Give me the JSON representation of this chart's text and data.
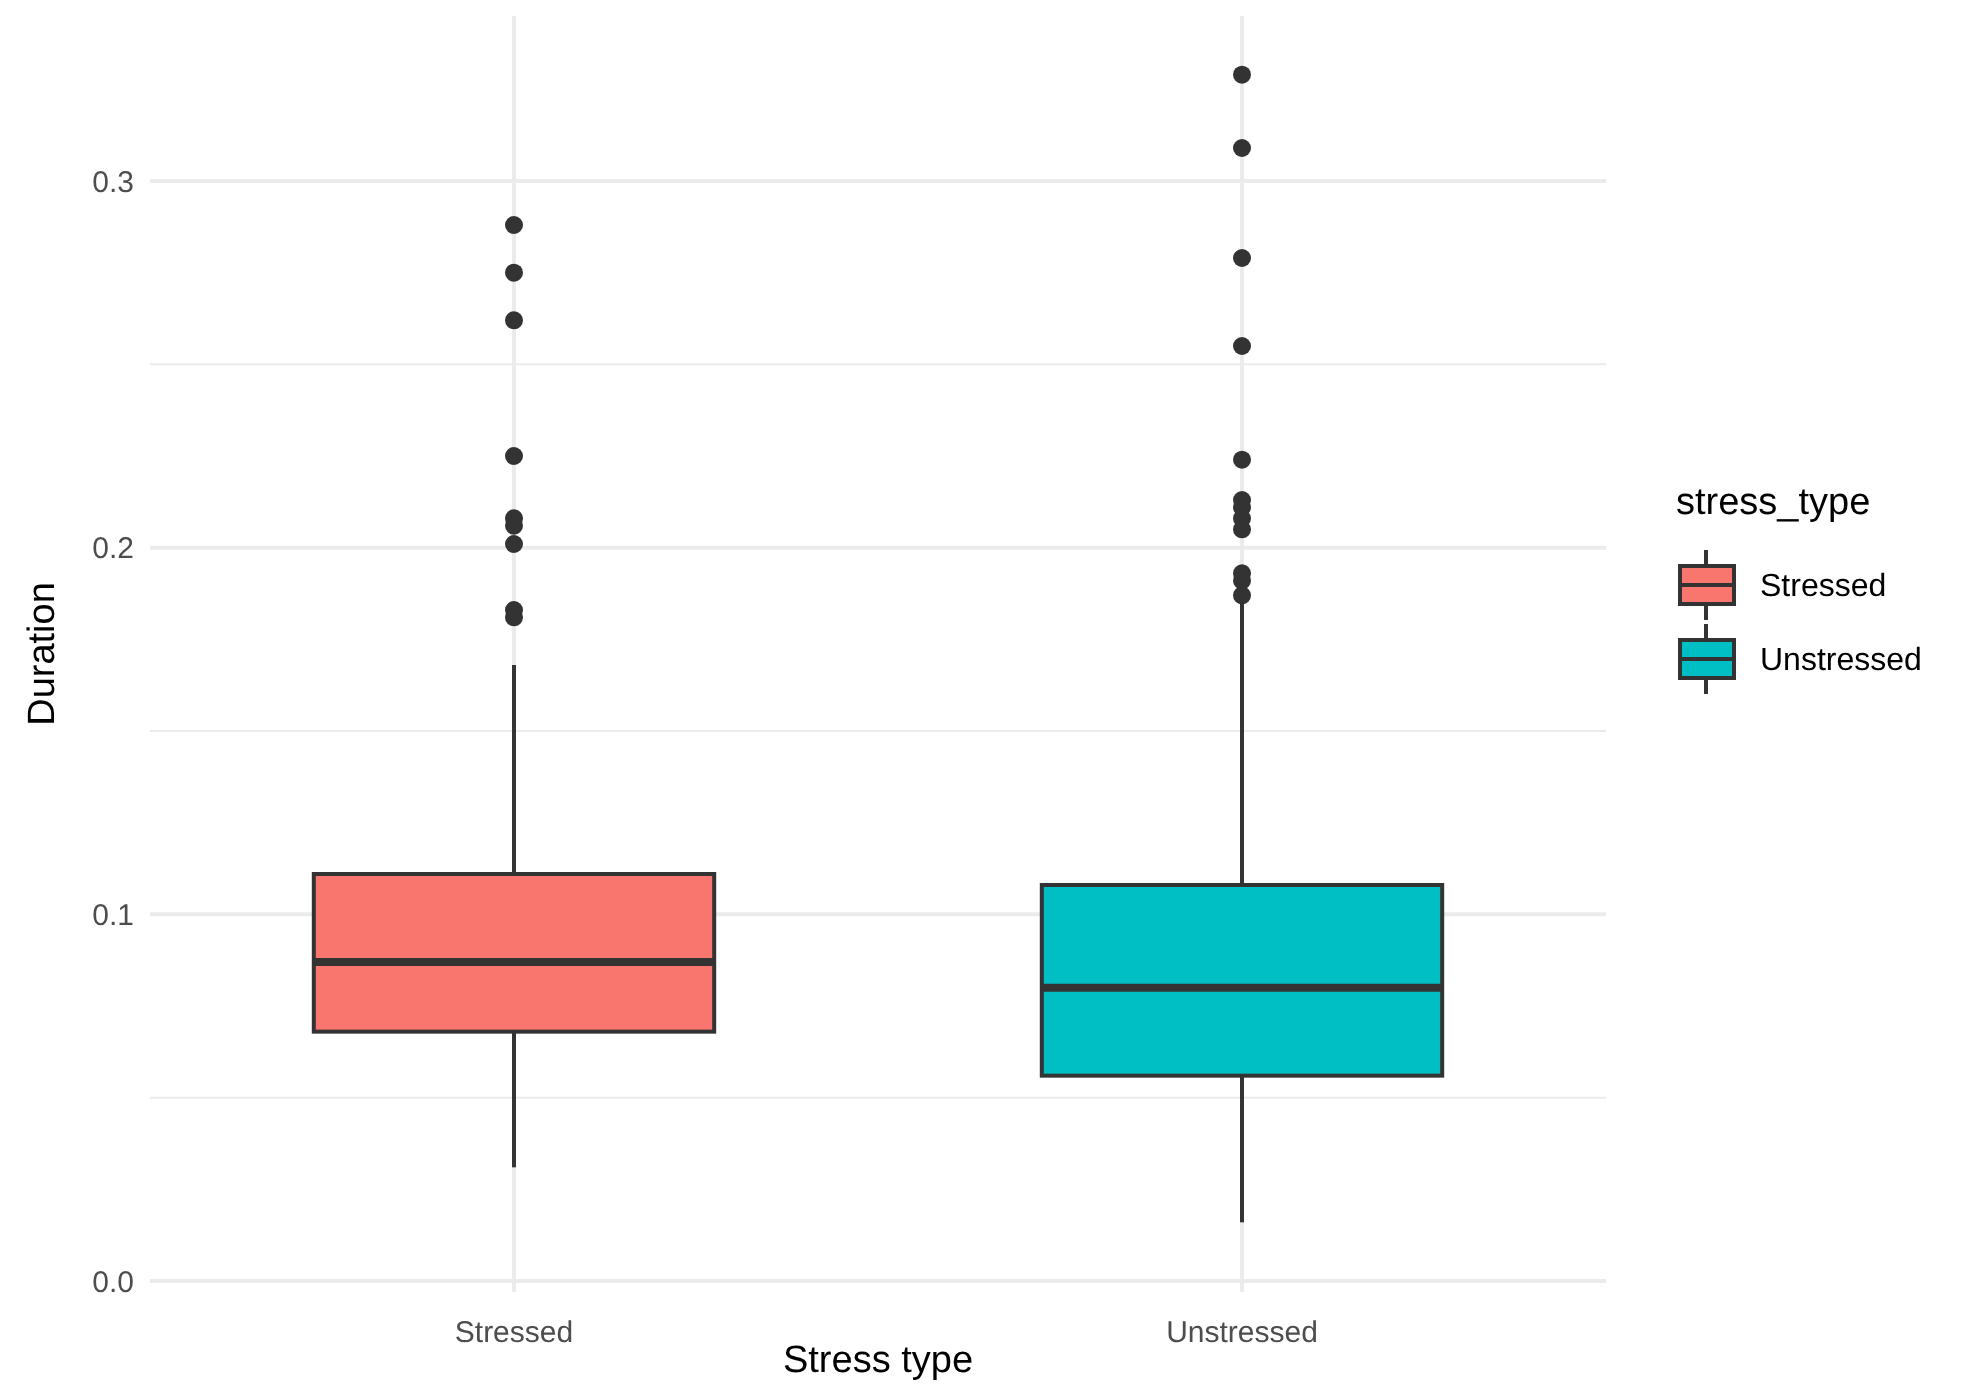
{
  "chart_data": {
    "type": "box",
    "xlabel": "Stress type",
    "ylabel": "Duration",
    "legend_title": "stress_type",
    "legend": "right",
    "grid": true,
    "categories": [
      "Stressed",
      "Unstressed"
    ],
    "series": [
      {
        "name": "Stressed",
        "color": "#f8766d",
        "boxes": [
          {
            "low": 0.031,
            "q1": 0.068,
            "median": 0.087,
            "q3": 0.111,
            "high": 0.168,
            "outliers": [
              0.288,
              0.275,
              0.262,
              0.225,
              0.208,
              0.206,
              0.201,
              0.183,
              0.181
            ]
          },
          null
        ]
      },
      {
        "name": "Unstressed",
        "color": "#00bfc4",
        "boxes": [
          null,
          {
            "low": 0.016,
            "q1": 0.056,
            "median": 0.08,
            "q3": 0.108,
            "high": 0.188,
            "outliers": [
              0.329,
              0.309,
              0.279,
              0.255,
              0.224,
              0.213,
              0.211,
              0.208,
              0.205,
              0.193,
              0.191,
              0.187
            ]
          }
        ]
      }
    ],
    "ylim": [
      -0.003,
      0.345
    ],
    "yticks": [
      {
        "value": 0,
        "label": "0.0"
      },
      0.1,
      0.2,
      0.3
    ]
  }
}
